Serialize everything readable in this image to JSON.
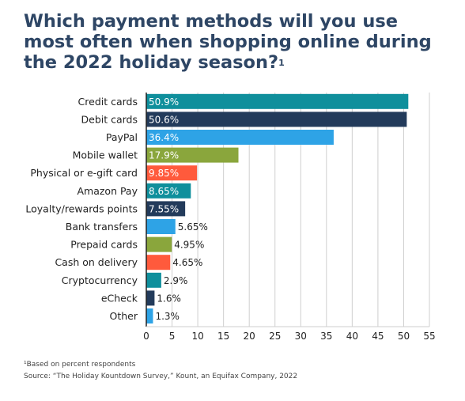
{
  "title": "Which payment methods will you use most often when shopping online during the 2022 holiday season?",
  "title_marker": "1",
  "footnote": "¹Based on percent respondents",
  "source": "Source: “The Holiday Kountdown Survey,” Kount, an Equifax Company, 2022",
  "chart_data": {
    "type": "bar",
    "orientation": "horizontal",
    "categories": [
      "Credit cards",
      "Debit cards",
      "PayPal",
      "Mobile wallet",
      "Physical or e-gift card",
      "Amazon Pay",
      "Loyalty/rewards points",
      "Bank transfers",
      "Prepaid cards",
      "Cash on delivery",
      "Cryptocurrency",
      "eCheck",
      "Other"
    ],
    "values": [
      50.9,
      50.6,
      36.4,
      17.9,
      9.85,
      8.65,
      7.55,
      5.65,
      4.95,
      4.65,
      2.9,
      1.6,
      1.3
    ],
    "labels": [
      "50.9%",
      "50.6%",
      "36.4%",
      "17.9%",
      "9.85%",
      "8.65%",
      "7.55%",
      "5.65%",
      "4.95%",
      "4.65%",
      "2.9%",
      "1.6%",
      "1.3%"
    ],
    "colors": [
      "#0f8f9c",
      "#233b5b",
      "#2ea3e6",
      "#8aa63c",
      "#ff5a3c",
      "#0f8f9c",
      "#233b5b",
      "#2ea3e6",
      "#8aa63c",
      "#ff5a3c",
      "#0f8f9c",
      "#233b5b",
      "#2ea3e6"
    ],
    "xlim": [
      0,
      55
    ],
    "xticks": [
      0,
      5,
      10,
      15,
      20,
      25,
      30,
      35,
      40,
      45,
      50,
      55
    ],
    "grid": true,
    "xlabel": "",
    "ylabel": ""
  }
}
